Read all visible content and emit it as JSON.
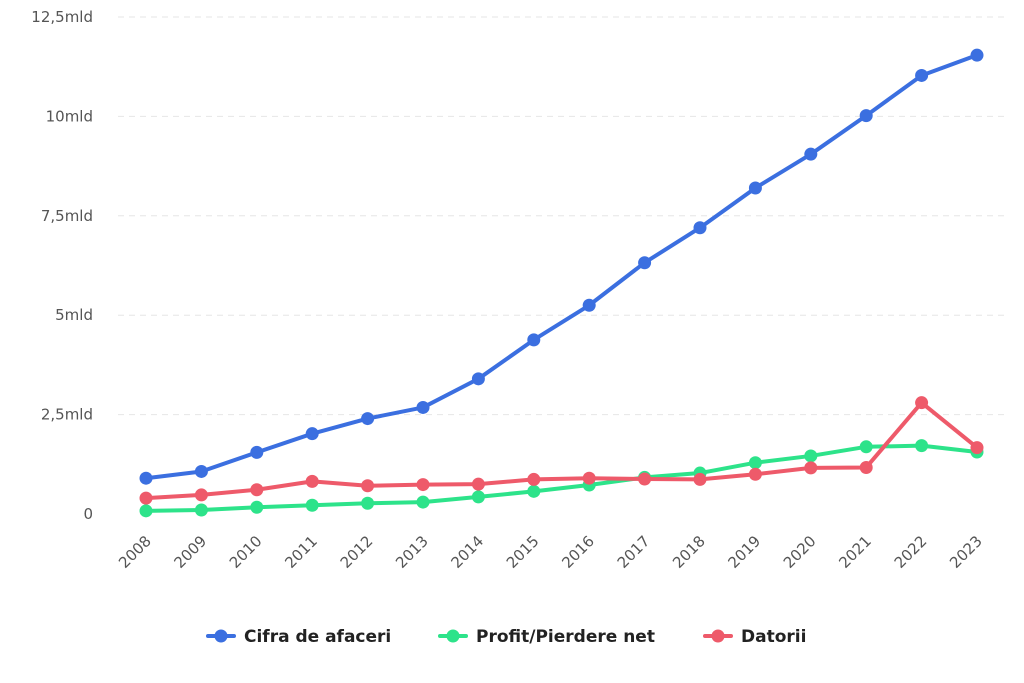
{
  "chart_data": {
    "type": "line",
    "title": "",
    "xlabel": "",
    "ylabel": "",
    "ylim": [
      0,
      12500000000
    ],
    "y_ticks": [
      {
        "value": 0,
        "label": "0"
      },
      {
        "value": 2500000000,
        "label": "2,5mld"
      },
      {
        "value": 5000000000,
        "label": "5mld"
      },
      {
        "value": 7500000000,
        "label": "7,5mld"
      },
      {
        "value": 10000000000,
        "label": "10mld"
      },
      {
        "value": 12500000000,
        "label": "12,5mld"
      }
    ],
    "categories": [
      "2008",
      "2009",
      "2010",
      "2011",
      "2012",
      "2013",
      "2014",
      "2015",
      "2016",
      "2017",
      "2018",
      "2019",
      "2020",
      "2021",
      "2022",
      "2023"
    ],
    "grid": true,
    "legend_position": "bottom",
    "series": [
      {
        "name": "Cifra de afaceri",
        "color": "#3b6fe0",
        "values": [
          900000000,
          1070000000,
          1550000000,
          2020000000,
          2400000000,
          2680000000,
          3400000000,
          4380000000,
          5250000000,
          6320000000,
          7200000000,
          8200000000,
          9050000000,
          10020000000,
          11030000000,
          11540000000
        ]
      },
      {
        "name": "Profit/Pierdere net",
        "color": "#2de38a",
        "values": [
          80000000,
          100000000,
          170000000,
          220000000,
          270000000,
          300000000,
          430000000,
          570000000,
          730000000,
          920000000,
          1030000000,
          1290000000,
          1460000000,
          1690000000,
          1720000000,
          1560000000
        ]
      },
      {
        "name": "Datorii",
        "color": "#ee5a6a",
        "values": [
          400000000,
          480000000,
          610000000,
          820000000,
          710000000,
          740000000,
          750000000,
          870000000,
          900000000,
          880000000,
          870000000,
          1000000000,
          1160000000,
          1170000000,
          2800000000,
          1670000000
        ]
      }
    ]
  }
}
